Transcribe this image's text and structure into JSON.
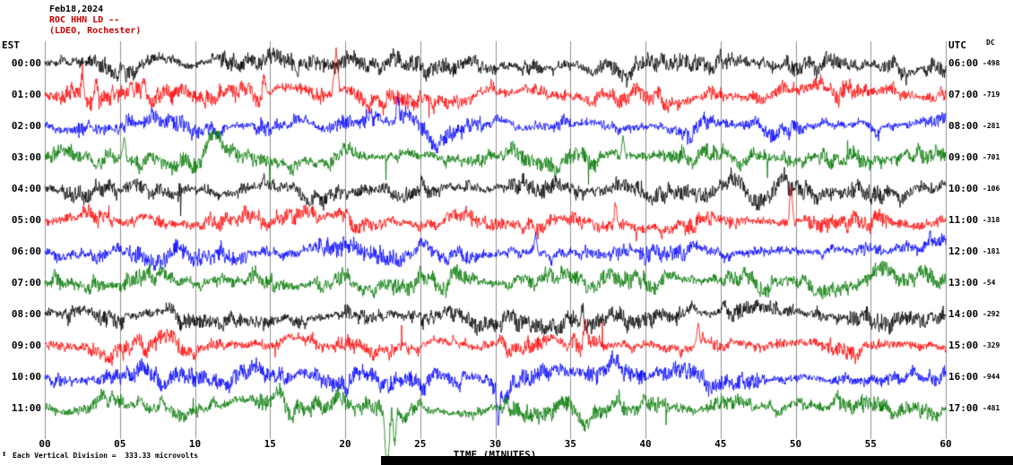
{
  "header": {
    "date": "Feb18,2024",
    "station": "ROC HHN LD --",
    "location": "(LDEO, Rochester)"
  },
  "axes": {
    "left_label": "EST",
    "right_label": "UTC",
    "dc_label": "DC",
    "x_axis_label": "TIME (MINUTES)"
  },
  "footer": {
    "scale_marker": "↕",
    "scale_note": "Each Vertical Division =  333.33 microvolts"
  },
  "chart_data": {
    "type": "line",
    "title": "ROC HHN LD -- (LDEO, Rochester) Feb18,2024 helicorder record",
    "xlabel": "TIME (MINUTES)",
    "x_range": [
      0,
      60
    ],
    "x_ticks": [
      "00",
      "05",
      "10",
      "15",
      "20",
      "25",
      "30",
      "35",
      "40",
      "45",
      "50",
      "55",
      "60"
    ],
    "grid": true,
    "vertical_division_microvolts": 333.33,
    "colors": {
      "black": "#000000",
      "red": "#ff0000",
      "blue": "#0000ff",
      "green": "#007700"
    },
    "rows": [
      {
        "est": "00:00",
        "utc": "06:00",
        "dc": "-498",
        "color": "black",
        "spikes": []
      },
      {
        "est": "01:00",
        "utc": "07:00",
        "dc": "-719",
        "color": "red",
        "spikes": [
          {
            "m": 2.5,
            "a": 28
          },
          {
            "m": 3.4,
            "a": 30
          },
          {
            "m": 14.6,
            "a": 20
          },
          {
            "m": 19.4,
            "a": 46
          }
        ]
      },
      {
        "est": "02:00",
        "utc": "08:00",
        "dc": "-281",
        "color": "blue",
        "spikes": [
          {
            "m": 23.5,
            "a": 26
          }
        ]
      },
      {
        "est": "03:00",
        "utc": "09:00",
        "dc": "-701",
        "color": "green",
        "spikes": [
          {
            "m": 5.3,
            "a": 26
          },
          {
            "m": 38.5,
            "a": 22
          }
        ]
      },
      {
        "est": "04:00",
        "utc": "10:00",
        "dc": "-106",
        "color": "black",
        "spikes": []
      },
      {
        "est": "05:00",
        "utc": "11:00",
        "dc": "-318",
        "color": "red",
        "spikes": [
          {
            "m": 49.7,
            "a": 42
          },
          {
            "m": 38.0,
            "a": 24
          }
        ]
      },
      {
        "est": "06:00",
        "utc": "12:00",
        "dc": "-181",
        "color": "blue",
        "spikes": [
          {
            "m": 32.7,
            "a": 22
          }
        ]
      },
      {
        "est": "07:00",
        "utc": "13:00",
        "dc": "-54",
        "color": "green",
        "spikes": []
      },
      {
        "est": "08:00",
        "utc": "14:00",
        "dc": "-292",
        "color": "black",
        "spikes": [
          {
            "m": 35.8,
            "a": 20
          }
        ]
      },
      {
        "est": "09:00",
        "utc": "15:00",
        "dc": "-329",
        "color": "red",
        "spikes": [
          {
            "m": 36.0,
            "a": 28
          },
          {
            "m": 43.5,
            "a": 22
          }
        ]
      },
      {
        "est": "10:00",
        "utc": "16:00",
        "dc": "-944",
        "color": "blue",
        "spikes": [
          {
            "m": 30.2,
            "a": -32
          }
        ]
      },
      {
        "est": "11:00",
        "utc": "17:00",
        "dc": "-481",
        "color": "green",
        "spikes": [
          {
            "m": 22.8,
            "a": -62
          },
          {
            "m": 23.3,
            "a": -34
          }
        ]
      }
    ]
  }
}
